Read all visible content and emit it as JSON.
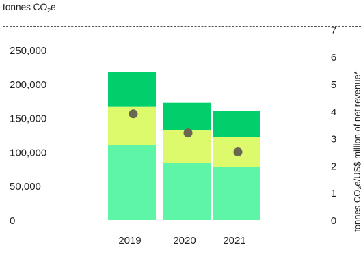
{
  "chart_data": {
    "type": "bar",
    "unit_label_parts": [
      "tonnes CO",
      "2",
      "e"
    ],
    "categories": [
      "2019",
      "2020",
      "2021"
    ],
    "stacks": [
      [
        110000,
        57000,
        50000
      ],
      [
        84000,
        48000,
        40000
      ],
      [
        78000,
        44000,
        38000
      ]
    ],
    "colors": [
      "#5ef5a6",
      "#dcfa6b",
      "#00cf6c"
    ],
    "markers": [
      3.9,
      3.2,
      2.5
    ],
    "marker_color": "#6b6652",
    "y_left": {
      "ticks": [
        "0",
        "50,000",
        "100,000",
        "150,000",
        "200,000",
        "250,000"
      ],
      "ylim": [
        0,
        250000
      ]
    },
    "y_right": {
      "ticks": [
        "0",
        "1",
        "2",
        "3",
        "4",
        "5",
        "6",
        "7"
      ],
      "ylim": [
        0,
        7
      ],
      "label": "tonnes CO₂e/US$ million of net revenue*"
    }
  }
}
